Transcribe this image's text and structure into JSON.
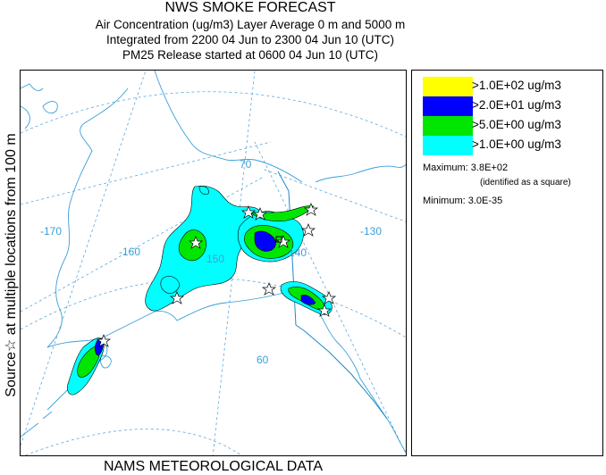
{
  "header": {
    "title": "NWS SMOKE FORECAST",
    "line1": "Air Concentration (ug/m3) Layer Average    0 m and  5000 m",
    "line2": "Integrated from 2200 04 Jun to 2300 04 Jun 10 (UTC)",
    "line3": "PM25 Release started at 0600 04 Jun 10 (UTC)"
  },
  "side_label": "Source☆   at multiple locations   from   100 m",
  "footer": "NAMS METEOROLOGICAL DATA",
  "map": {
    "graticule_labels": {
      "lon_170": "-170",
      "lon_160": "-160",
      "lon_150": "150",
      "lon_140": "140",
      "lon_130": "-130",
      "lat_70": "70",
      "lat_60": "60"
    },
    "colors": {
      "land": "#3aa0d8",
      "graticule": "#5aa8dd",
      "border": "#1f88c8",
      "level1": "#00ffff",
      "level2": "#00e600",
      "level3": "#0000ff",
      "level4": "#ffff00",
      "contour": "#000000"
    },
    "source_icon": "star-outline-icon",
    "max_marker_icon": "square-icon"
  },
  "legend": {
    "items": [
      {
        "label": ">1.0E+02 ug/m3",
        "color": "#ffff00"
      },
      {
        "label": ">2.0E+01 ug/m3",
        "color": "#0000ff"
      },
      {
        "label": ">5.0E+00 ug/m3",
        "color": "#00e600"
      },
      {
        "label": ">1.0E+00 ug/m3",
        "color": "#00ffff"
      }
    ],
    "maximum": "Maximum: 3.8E+02",
    "maximum_note": "(identified as a square)",
    "minimum": "Minimum: 3.0E-35"
  }
}
